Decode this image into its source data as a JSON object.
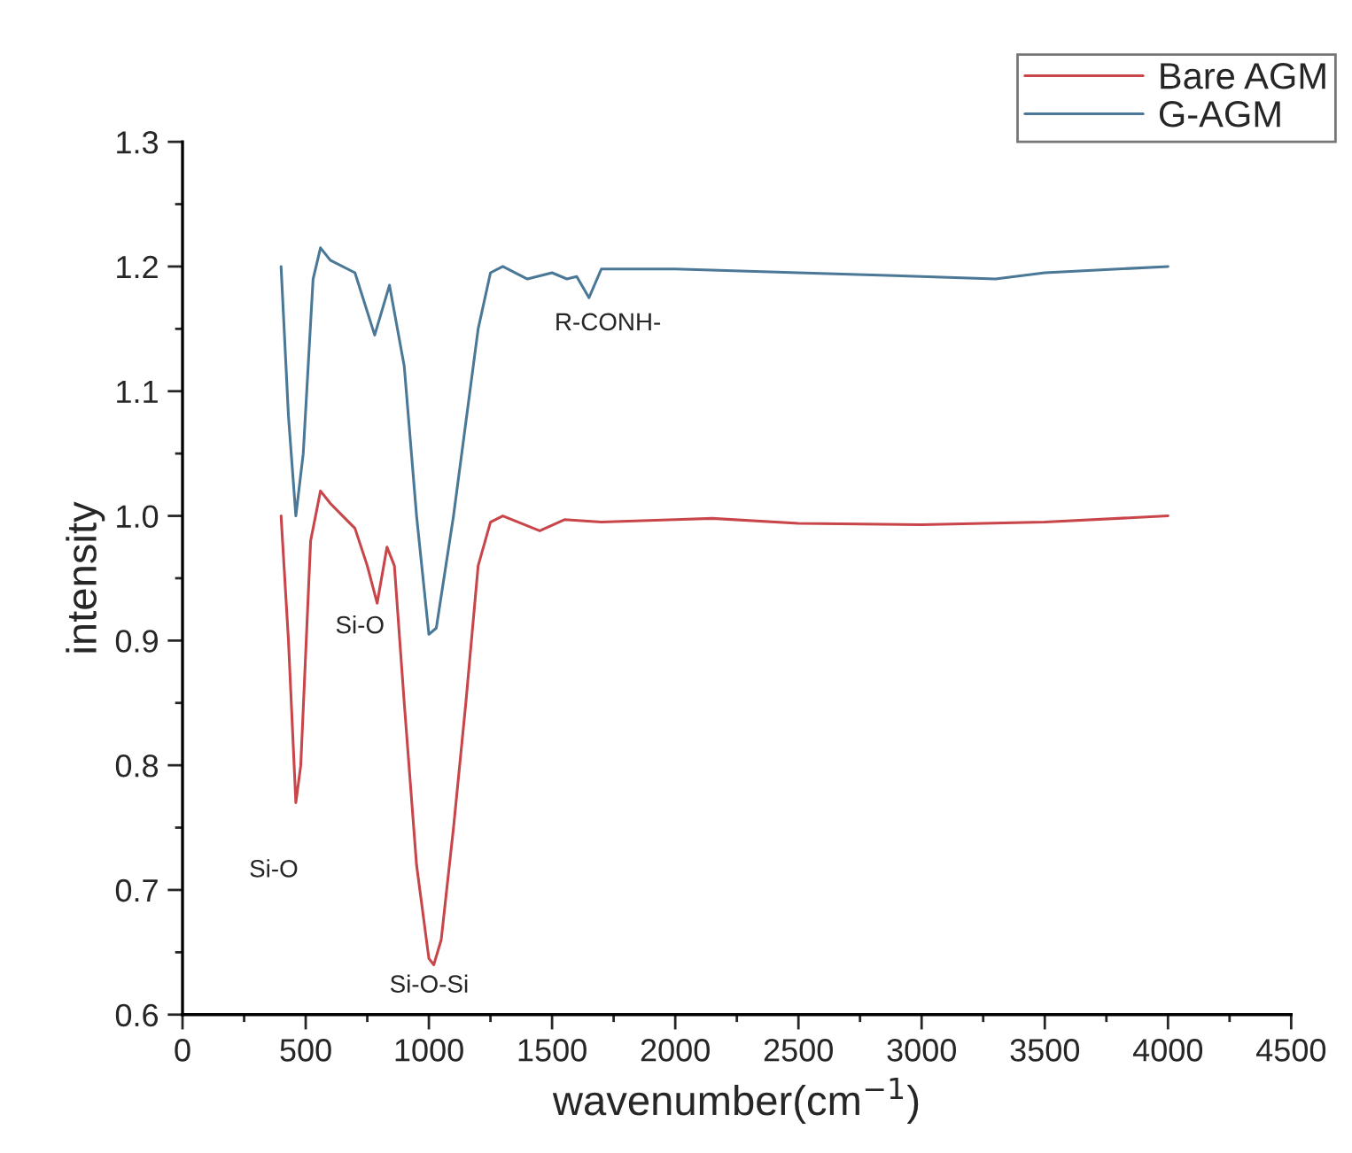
{
  "chart_data": {
    "type": "line",
    "xlabel": "wavenumber(cm$^{−1}$)",
    "ylabel": "intensity",
    "xlim": [
      0,
      4500
    ],
    "xticks": [
      0,
      500,
      1000,
      1500,
      2000,
      2500,
      3000,
      3500,
      4000,
      4500
    ],
    "ylim": [
      0.6,
      1.3
    ],
    "yticks": [
      {
        "value": 0.6,
        "label": "0.6"
      },
      {
        "value": 0.7,
        "label": "0.7"
      },
      {
        "value": 0.8,
        "label": "0.8"
      },
      {
        "value": 0.9,
        "label": "0.9"
      },
      {
        "value": 1.0,
        "label": "1.0"
      },
      {
        "value": 1.1,
        "label": "1.1"
      },
      {
        "value": 1.2,
        "label": "1.2"
      },
      {
        "value": 1.3,
        "label": "1.3"
      }
    ],
    "grid": false,
    "legend": "top right",
    "marker": "none",
    "line_style": "solid",
    "series": [
      {
        "name": "Bare AGM",
        "color": "#c8454a",
        "x": [
          400,
          430,
          460,
          480,
          520,
          560,
          600,
          650,
          700,
          750,
          790,
          830,
          860,
          900,
          950,
          1000,
          1020,
          1050,
          1100,
          1150,
          1200,
          1250,
          1300,
          1450,
          1550,
          1700,
          2000,
          2150,
          2500,
          3000,
          3500,
          4000
        ],
        "values": [
          1.0,
          0.9,
          0.77,
          0.8,
          0.98,
          1.02,
          1.01,
          1.0,
          0.99,
          0.96,
          0.93,
          0.975,
          0.96,
          0.85,
          0.72,
          0.645,
          0.64,
          0.66,
          0.75,
          0.85,
          0.96,
          0.995,
          1.0,
          0.988,
          0.997,
          0.995,
          0.997,
          0.998,
          0.994,
          0.993,
          0.995,
          1.0
        ]
      },
      {
        "name": "G-AGM",
        "color": "#4a7896",
        "x": [
          400,
          430,
          460,
          490,
          530,
          560,
          600,
          700,
          780,
          840,
          900,
          950,
          1000,
          1030,
          1100,
          1200,
          1250,
          1300,
          1400,
          1500,
          1560,
          1600,
          1650,
          1700,
          2000,
          2500,
          3000,
          3300,
          3500,
          4000
        ],
        "values": [
          1.2,
          1.08,
          1.0,
          1.05,
          1.19,
          1.215,
          1.205,
          1.195,
          1.145,
          1.185,
          1.12,
          1.0,
          0.905,
          0.91,
          1.0,
          1.15,
          1.195,
          1.2,
          1.19,
          1.195,
          1.19,
          1.192,
          1.175,
          1.198,
          1.198,
          1.195,
          1.192,
          1.19,
          1.195,
          1.2
        ]
      }
    ],
    "annotations": [
      {
        "text": "Si-O",
        "x": 460,
        "y": 0.77
      },
      {
        "text": "Si-O",
        "x": 790,
        "y": 0.93
      },
      {
        "text": "Si-O-Si",
        "x": 1020,
        "y": 0.64
      },
      {
        "text": "R-CONH-",
        "x": 1650,
        "y": 1.175
      }
    ]
  }
}
